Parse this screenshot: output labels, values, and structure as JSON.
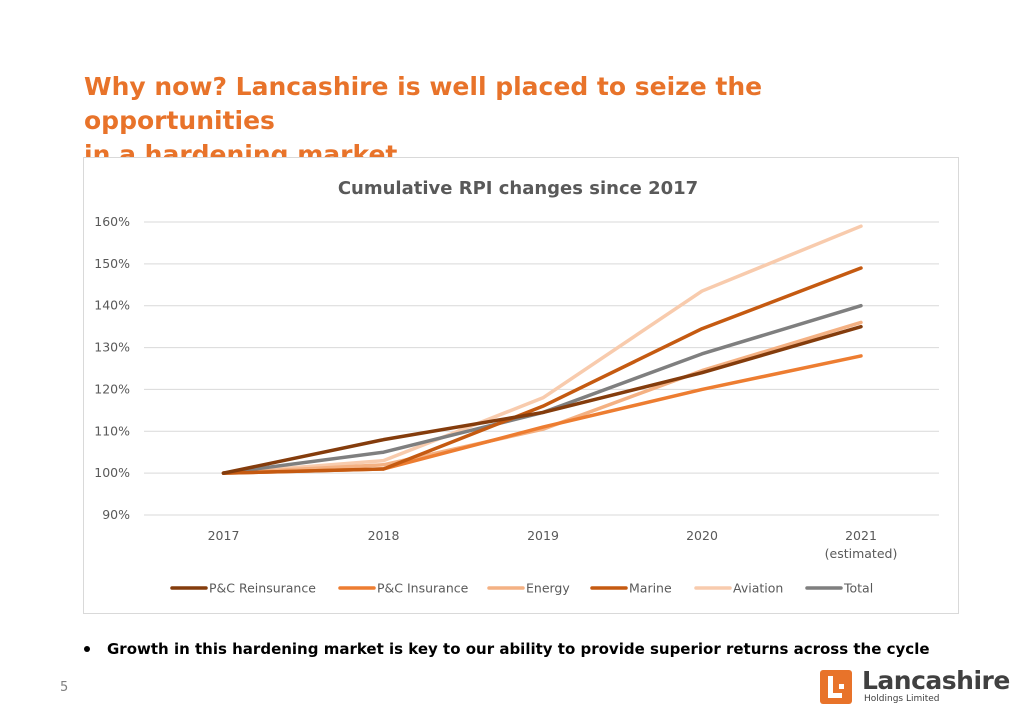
{
  "slide": {
    "title_line1": "Why now?  Lancashire is well placed to seize the opportunities",
    "title_line2": "in a hardening market",
    "bullet": "Growth in this hardening market is key to our ability to provide superior returns across the cycle",
    "page_number": "5",
    "logo": {
      "name": "Lancashire",
      "subtitle": "Holdings Limited",
      "color": "#E8732A"
    }
  },
  "chart_data": {
    "type": "line",
    "title": "Cumulative RPI changes since 2017",
    "categories": [
      "2017",
      "2018",
      "2019",
      "2020",
      "2021"
    ],
    "category_sublabels": [
      "",
      "",
      "",
      "",
      "(estimated)"
    ],
    "y_tick_labels": [
      "90%",
      "100%",
      "110%",
      "120%",
      "130%",
      "140%",
      "150%",
      "160%"
    ],
    "ylim": [
      90,
      160
    ],
    "y_unit": "%",
    "grid": true,
    "legend_position": "bottom",
    "series": [
      {
        "name": "P&C Reinsurance",
        "color": "#843C0C",
        "values": [
          100,
          108,
          114.5,
          124,
          135
        ]
      },
      {
        "name": "P&C Insurance",
        "color": "#ED7D31",
        "values": [
          100,
          101,
          111,
          120,
          128
        ]
      },
      {
        "name": "Energy",
        "color": "#F4B183",
        "values": [
          100,
          102,
          110.5,
          124.5,
          136
        ]
      },
      {
        "name": "Marine",
        "color": "#C55A11",
        "values": [
          100,
          101,
          116,
          134.5,
          149
        ]
      },
      {
        "name": "Aviation",
        "color": "#F8CBAD",
        "values": [
          100,
          103,
          118,
          143.5,
          159
        ]
      },
      {
        "name": "Total",
        "color": "#7F7F7F",
        "values": [
          100,
          105,
          114.5,
          128.5,
          140
        ]
      }
    ]
  }
}
